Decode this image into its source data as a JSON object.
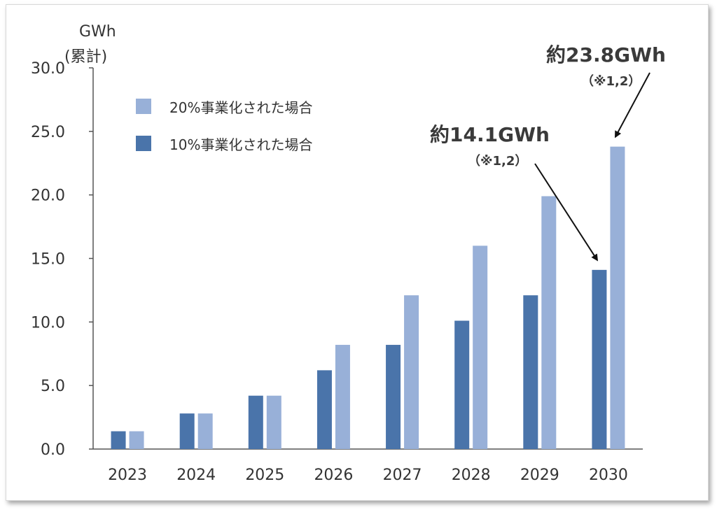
{
  "chart_data": {
    "type": "bar",
    "ylabel": "GWh",
    "ylabel_sub": "(累計)",
    "ylim": [
      0,
      30
    ],
    "yticks": [
      "0.0",
      "5.0",
      "10.0",
      "15.0",
      "20.0",
      "25.0",
      "30.0"
    ],
    "categories": [
      "2023",
      "2024",
      "2025",
      "2026",
      "2027",
      "2028",
      "2029",
      "2030"
    ],
    "series": [
      {
        "name": "10%事業化された場合",
        "color": "#4a74aa",
        "values": [
          1.4,
          2.8,
          4.2,
          6.2,
          8.2,
          10.1,
          12.1,
          14.1
        ]
      },
      {
        "name": "20%事業化された場合",
        "color": "#98b0d8",
        "values": [
          1.4,
          2.8,
          4.2,
          8.2,
          12.1,
          16.0,
          19.9,
          23.8
        ]
      }
    ],
    "legend_order": [
      1,
      0
    ],
    "legend_position": "top-left",
    "grid": false,
    "annotations": [
      {
        "main": "約23.8GWh",
        "sub": "（※1,2）",
        "category": "2030",
        "series": 1
      },
      {
        "main": "約14.1GWh",
        "sub": "（※1,2）",
        "category": "2030",
        "series": 0
      }
    ]
  }
}
